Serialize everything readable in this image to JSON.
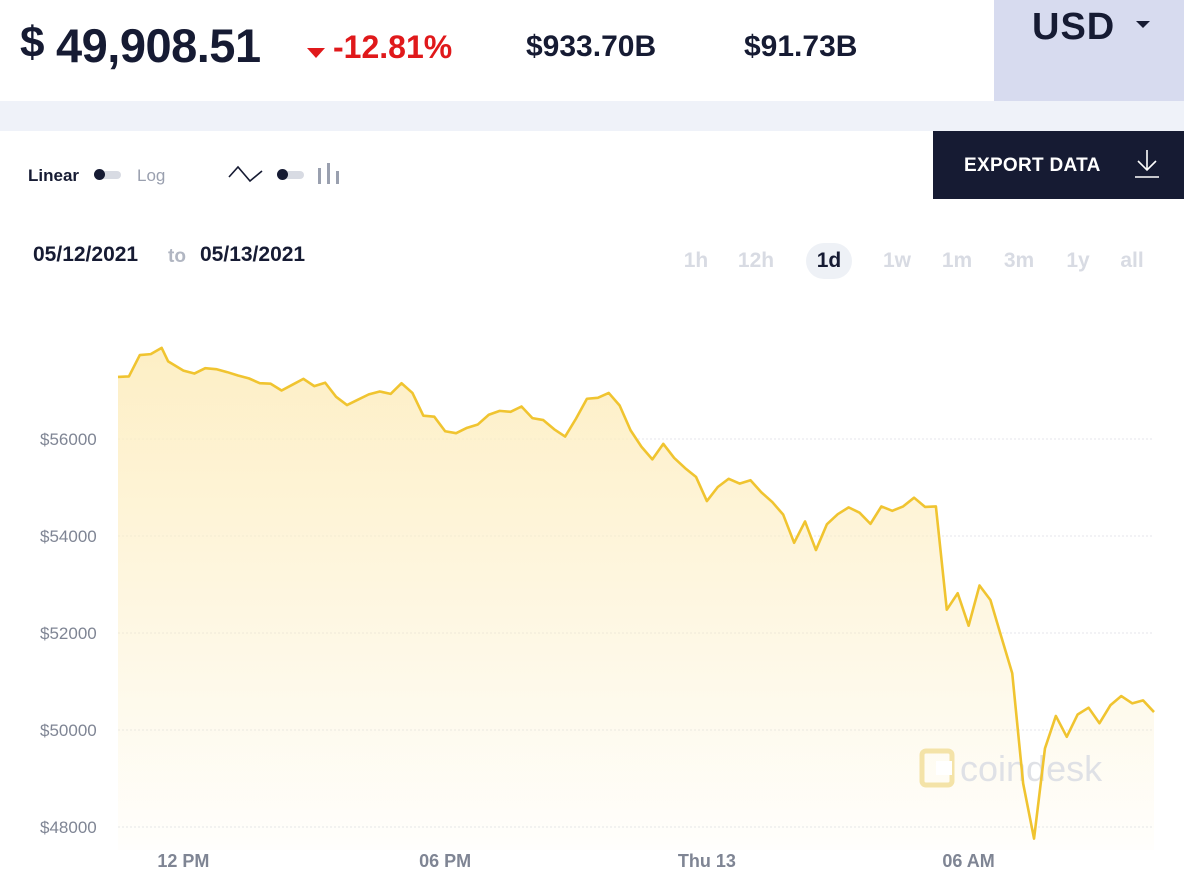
{
  "header": {
    "currency_symbol": "$",
    "price": "49,908.51",
    "change": "-12.81%",
    "stat_1": "$933.70B",
    "stat_2": "$91.73B",
    "currency": "USD"
  },
  "toolbar": {
    "scale_linear": "Linear",
    "scale_log": "Log",
    "scale_selected": "Linear",
    "chart_type_selected": "line",
    "export_label": "EXPORT DATA"
  },
  "date_range": {
    "from": "05/12/2021",
    "separator": "to",
    "to": "05/13/2021"
  },
  "range_tabs": [
    {
      "label": "1h",
      "active": false
    },
    {
      "label": "12h",
      "active": false
    },
    {
      "label": "1d",
      "active": true
    },
    {
      "label": "1w",
      "active": false
    },
    {
      "label": "1m",
      "active": false
    },
    {
      "label": "3m",
      "active": false
    },
    {
      "label": "1y",
      "active": false
    },
    {
      "label": "all",
      "active": false
    }
  ],
  "watermark": "coindesk",
  "colors": {
    "line": "#f0c430",
    "fill": "#fdeec2",
    "navy": "#161b33",
    "negative": "#e0191b",
    "grid": "#e4e6eb",
    "tick": "#7f8594"
  },
  "chart_data": {
    "type": "area",
    "grid": true,
    "y_axis": {
      "ticks": [
        48000,
        50000,
        52000,
        54000,
        56000
      ],
      "tick_labels": [
        "$48000",
        "$50000",
        "$52000",
        "$54000",
        "$56000"
      ],
      "range": [
        47800,
        58300
      ]
    },
    "x_axis": {
      "ticks": [
        1.5,
        7.5,
        13.5,
        19.5
      ],
      "tick_labels": [
        "12 PM",
        "06 PM",
        "Thu 13",
        "06 AM"
      ],
      "range": [
        0,
        23.75
      ],
      "unit_note": "hours after 10:30 AM May 12"
    },
    "points": [
      [
        0.0,
        57280
      ],
      [
        0.25,
        57290
      ],
      [
        0.5,
        57730
      ],
      [
        0.75,
        57750
      ],
      [
        1.0,
        57880
      ],
      [
        1.15,
        57600
      ],
      [
        1.5,
        57410
      ],
      [
        1.75,
        57350
      ],
      [
        2.0,
        57460
      ],
      [
        2.25,
        57440
      ],
      [
        2.5,
        57380
      ],
      [
        2.75,
        57310
      ],
      [
        3.0,
        57250
      ],
      [
        3.25,
        57150
      ],
      [
        3.5,
        57140
      ],
      [
        3.75,
        57000
      ],
      [
        4.0,
        57120
      ],
      [
        4.25,
        57240
      ],
      [
        4.5,
        57090
      ],
      [
        4.75,
        57160
      ],
      [
        5.0,
        56870
      ],
      [
        5.25,
        56700
      ],
      [
        5.5,
        56810
      ],
      [
        5.75,
        56920
      ],
      [
        6.0,
        56980
      ],
      [
        6.25,
        56930
      ],
      [
        6.5,
        57150
      ],
      [
        6.75,
        56950
      ],
      [
        7.0,
        56480
      ],
      [
        7.25,
        56460
      ],
      [
        7.5,
        56160
      ],
      [
        7.75,
        56120
      ],
      [
        8.0,
        56230
      ],
      [
        8.25,
        56300
      ],
      [
        8.5,
        56500
      ],
      [
        8.75,
        56580
      ],
      [
        9.0,
        56560
      ],
      [
        9.25,
        56670
      ],
      [
        9.5,
        56430
      ],
      [
        9.75,
        56390
      ],
      [
        10.0,
        56200
      ],
      [
        10.25,
        56050
      ],
      [
        10.5,
        56420
      ],
      [
        10.75,
        56830
      ],
      [
        11.0,
        56850
      ],
      [
        11.25,
        56950
      ],
      [
        11.5,
        56690
      ],
      [
        11.75,
        56180
      ],
      [
        12.0,
        55840
      ],
      [
        12.25,
        55580
      ],
      [
        12.5,
        55900
      ],
      [
        12.75,
        55610
      ],
      [
        13.0,
        55400
      ],
      [
        13.25,
        55220
      ],
      [
        13.5,
        54720
      ],
      [
        13.75,
        55010
      ],
      [
        14.0,
        55180
      ],
      [
        14.25,
        55080
      ],
      [
        14.5,
        55150
      ],
      [
        14.75,
        54900
      ],
      [
        15.0,
        54700
      ],
      [
        15.25,
        54440
      ],
      [
        15.5,
        53860
      ],
      [
        15.75,
        54300
      ],
      [
        16.0,
        53710
      ],
      [
        16.25,
        54240
      ],
      [
        16.5,
        54450
      ],
      [
        16.75,
        54590
      ],
      [
        17.0,
        54480
      ],
      [
        17.25,
        54250
      ],
      [
        17.5,
        54610
      ],
      [
        17.75,
        54520
      ],
      [
        18.0,
        54610
      ],
      [
        18.25,
        54790
      ],
      [
        18.5,
        54600
      ],
      [
        18.75,
        54610
      ],
      [
        19.0,
        52480
      ],
      [
        19.25,
        52820
      ],
      [
        19.5,
        52150
      ],
      [
        19.75,
        52980
      ],
      [
        20.0,
        52680
      ],
      [
        20.25,
        51920
      ],
      [
        20.5,
        51170
      ],
      [
        20.75,
        48900
      ],
      [
        21.0,
        47760
      ],
      [
        21.25,
        49620
      ],
      [
        21.5,
        50290
      ],
      [
        21.75,
        49860
      ],
      [
        22.0,
        50320
      ],
      [
        22.25,
        50460
      ],
      [
        22.5,
        50140
      ],
      [
        22.75,
        50510
      ],
      [
        23.0,
        50700
      ],
      [
        23.25,
        50550
      ],
      [
        23.5,
        50610
      ],
      [
        23.75,
        50370
      ]
    ]
  }
}
